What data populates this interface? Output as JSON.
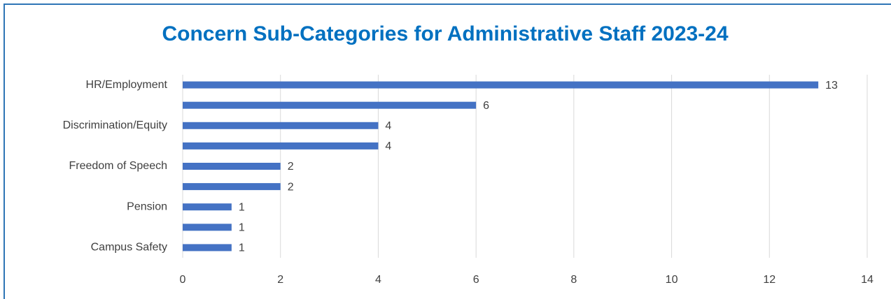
{
  "chart_data": {
    "type": "bar",
    "orientation": "horizontal",
    "title": "Concern Sub-Categories for Administrative Staff 2023-24",
    "categories": [
      "HR/Employment",
      null,
      "Discrimination/Equity",
      null,
      "Freedom of Speech",
      null,
      "Pension",
      null,
      "Campus Safety"
    ],
    "values": [
      13,
      6,
      4,
      4,
      2,
      2,
      1,
      1,
      1
    ],
    "color": "#4472c4",
    "xlim": [
      0,
      14
    ],
    "xticks": [
      0,
      2,
      4,
      6,
      8,
      10,
      12,
      14
    ],
    "grid": true
  }
}
